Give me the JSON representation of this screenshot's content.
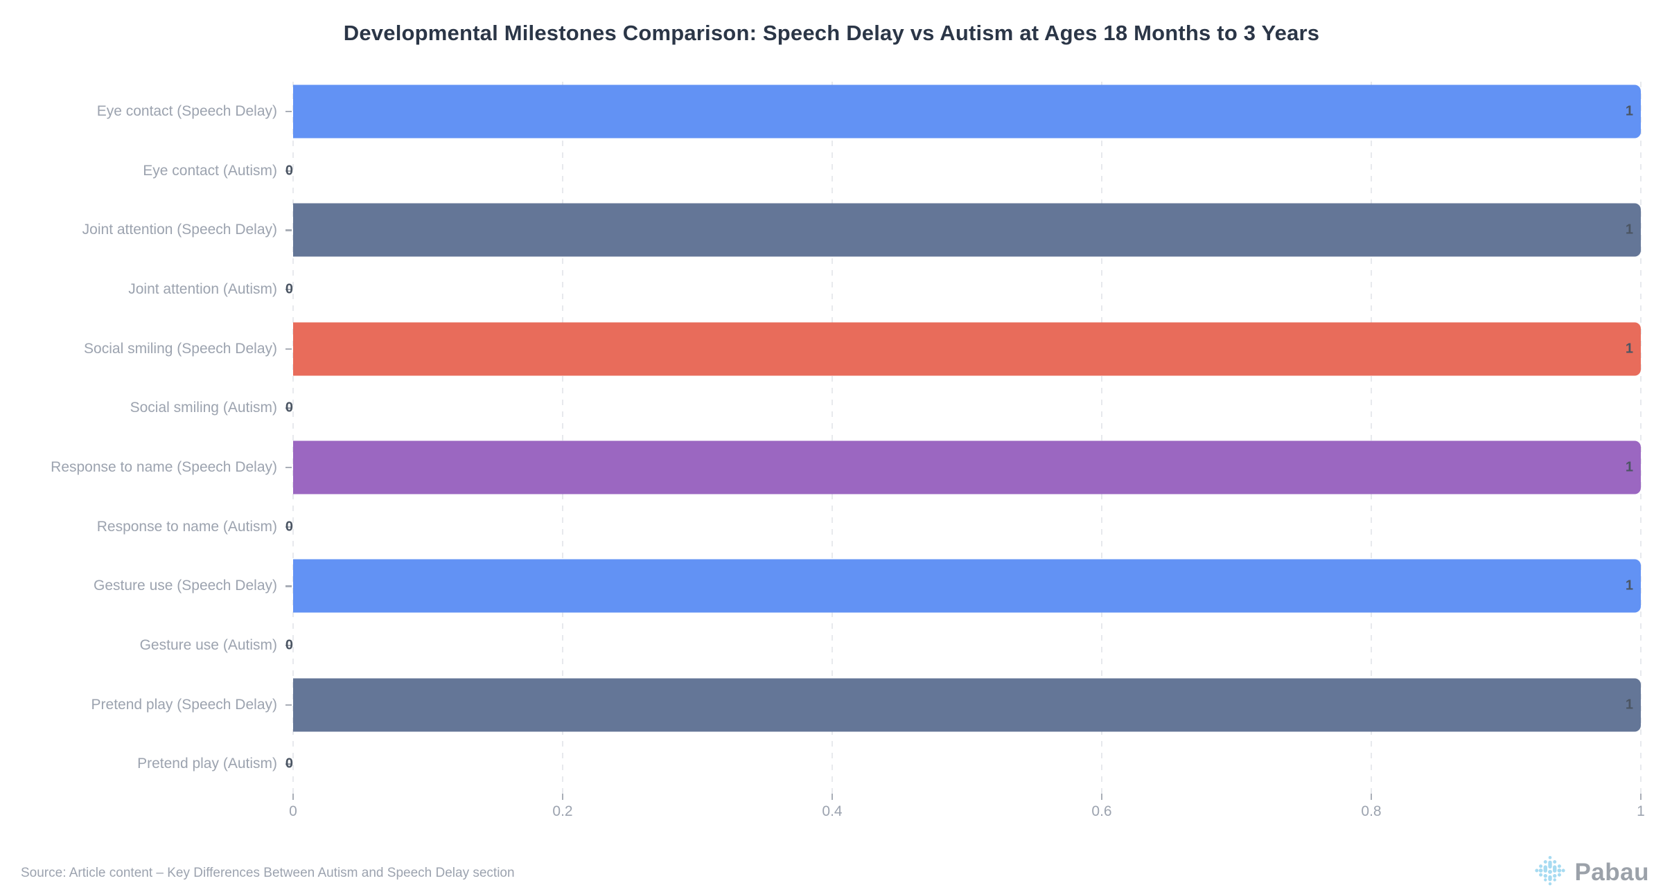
{
  "title": "Developmental Milestones Comparison: Speech Delay vs Autism at Ages 18 Months to 3 Years",
  "chart_data": {
    "type": "bar",
    "orientation": "horizontal",
    "title": "Developmental Milestones Comparison: Speech Delay vs Autism at Ages 18 Months to 3 Years",
    "categories": [
      "Eye contact (Speech Delay)",
      "Eye contact (Autism)",
      "Joint attention (Speech Delay)",
      "Joint attention (Autism)",
      "Social smiling (Speech Delay)",
      "Social smiling (Autism)",
      "Response to name (Speech Delay)",
      "Response to name (Autism)",
      "Gesture use (Speech Delay)",
      "Gesture use (Autism)",
      "Pretend play (Speech Delay)",
      "Pretend play (Autism)"
    ],
    "values": [
      1,
      0,
      1,
      0,
      1,
      0,
      1,
      0,
      1,
      0,
      1,
      0
    ],
    "value_labels": [
      "1",
      "0",
      "1",
      "0",
      "1",
      "0",
      "1",
      "0",
      "1",
      "0",
      "1",
      "0"
    ],
    "bar_colors": [
      "#6292F4",
      null,
      "#647697",
      null,
      "#E86C5B",
      null,
      "#9B67C1",
      null,
      "#6292F4",
      null,
      "#647697",
      null
    ],
    "xlabel": "",
    "ylabel": "",
    "xlim": [
      0,
      1
    ],
    "x_ticks": [
      "0",
      "0.2",
      "0.4",
      "0.6",
      "0.8",
      "1"
    ],
    "grid": "vertical-dashed",
    "legend": "none"
  },
  "footer": {
    "source": "Source: Article content – Key Differences Between Autism and Speech Delay section",
    "brand": "Pabau"
  },
  "icons": {
    "brand_logo": "pabau-dot-flake-icon"
  },
  "colors": {
    "blue": "#6292F4",
    "slate": "#647697",
    "coral": "#E86C5B",
    "purple": "#9B67C1",
    "title_text": "#2B3647",
    "axis_text": "#9CA3AF",
    "value_text": "#4B5563",
    "gridline": "#E7E9ED",
    "tick": "#A9AEB7",
    "logo_dot": "#A7DBF1",
    "logo_text": "#9BA1A9",
    "background": "#FFFFFF"
  }
}
